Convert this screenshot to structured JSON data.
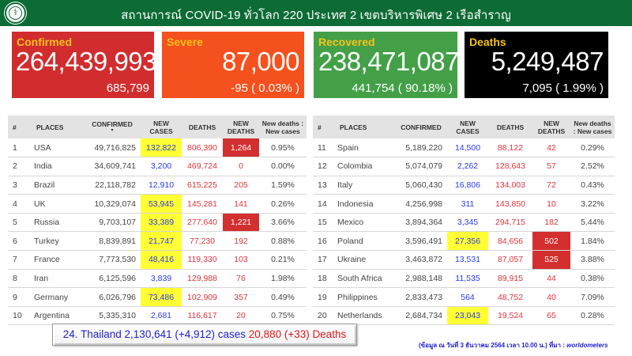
{
  "header": {
    "title": "สถานการณ์ COVID-19 ทั่วโลก 220 ประเทศ 2 เขตบริหารพิเศษ 2 เรือสำราญ",
    "logo_icon": "ministry-of-public-health-seal"
  },
  "cards": {
    "confirmed": {
      "label": "Confirmed",
      "value": "264,439,993",
      "sub": "685,799",
      "color": "#d12d2e"
    },
    "severe": {
      "label": "Severe",
      "value": "87,000",
      "sub": "-95 ( 0.03% )",
      "color": "#f4511e"
    },
    "recovered": {
      "label": "Recovered",
      "value": "238,471,087",
      "sub": "441,754 ( 90.18% )",
      "color": "#43a047"
    },
    "deaths": {
      "label": "Deaths",
      "value": "5,249,487",
      "sub": "7,095 ( 1.99% )",
      "color": "#000000"
    }
  },
  "table_headers": {
    "rank": "#",
    "places": "PLACES",
    "confirmed": "CONFIRMED",
    "sort_indicator": "▾",
    "new_cases_1": "NEW",
    "new_cases_2": "CASES",
    "deaths": "DEATHS",
    "new_deaths_1": "NEW",
    "new_deaths_2": "DEATHS",
    "ratio_left_1": "New deaths :",
    "ratio_left_2": "New cases",
    "ratio_right_1": "New deaths",
    "ratio_right_2": ": New cases"
  },
  "left_rows": [
    {
      "rank": "1",
      "place": "USA",
      "confirmed": "49,716,825",
      "new_cases": "132,822",
      "new_cases_hl": true,
      "deaths": "806,390",
      "new_deaths": "1,264",
      "new_deaths_hl": true,
      "ratio": "0.95%"
    },
    {
      "rank": "2",
      "place": "India",
      "confirmed": "34,609,741",
      "new_cases": "3,200",
      "new_cases_hl": false,
      "deaths": "469,724",
      "new_deaths": "0",
      "new_deaths_hl": false,
      "ratio": "0.00%"
    },
    {
      "rank": "3",
      "place": "Brazil",
      "confirmed": "22,118,782",
      "new_cases": "12,910",
      "new_cases_hl": false,
      "deaths": "615,225",
      "new_deaths": "205",
      "new_deaths_hl": false,
      "ratio": "1.59%"
    },
    {
      "rank": "4",
      "place": "UK",
      "confirmed": "10,329,074",
      "new_cases": "53,945",
      "new_cases_hl": true,
      "deaths": "145,281",
      "new_deaths": "141",
      "new_deaths_hl": false,
      "ratio": "0.26%"
    },
    {
      "rank": "5",
      "place": "Russia",
      "confirmed": "9,703,107",
      "new_cases": "33,389",
      "new_cases_hl": true,
      "deaths": "277,640",
      "new_deaths": "1,221",
      "new_deaths_hl": true,
      "ratio": "3.66%"
    },
    {
      "rank": "6",
      "place": "Turkey",
      "confirmed": "8,839,891",
      "new_cases": "21,747",
      "new_cases_hl": true,
      "deaths": "77,230",
      "new_deaths": "192",
      "new_deaths_hl": false,
      "ratio": "0.88%"
    },
    {
      "rank": "7",
      "place": "France",
      "confirmed": "7,773,530",
      "new_cases": "48,416",
      "new_cases_hl": true,
      "deaths": "119,330",
      "new_deaths": "103",
      "new_deaths_hl": false,
      "ratio": "0.21%"
    },
    {
      "rank": "8",
      "place": "Iran",
      "confirmed": "6,125,596",
      "new_cases": "3,839",
      "new_cases_hl": false,
      "deaths": "129,988",
      "new_deaths": "76",
      "new_deaths_hl": false,
      "ratio": "1.98%"
    },
    {
      "rank": "9",
      "place": "Germany",
      "confirmed": "6,026,796",
      "new_cases": "73,486",
      "new_cases_hl": true,
      "deaths": "102,909",
      "new_deaths": "357",
      "new_deaths_hl": false,
      "ratio": "0.49%"
    },
    {
      "rank": "10",
      "place": "Argentina",
      "confirmed": "5,335,310",
      "new_cases": "2,681",
      "new_cases_hl": false,
      "deaths": "116,617",
      "new_deaths": "20",
      "new_deaths_hl": false,
      "ratio": "0.75%"
    }
  ],
  "right_rows": [
    {
      "rank": "11",
      "place": "Spain",
      "confirmed": "5,189,220",
      "new_cases": "14,500",
      "new_cases_hl": false,
      "deaths": "88,122",
      "new_deaths": "42",
      "new_deaths_hl": false,
      "ratio": "0.29%"
    },
    {
      "rank": "12",
      "place": "Colombia",
      "confirmed": "5,074,079",
      "new_cases": "2,262",
      "new_cases_hl": false,
      "deaths": "128,643",
      "new_deaths": "57",
      "new_deaths_hl": false,
      "ratio": "2.52%"
    },
    {
      "rank": "13",
      "place": "Italy",
      "confirmed": "5,060,430",
      "new_cases": "16,806",
      "new_cases_hl": false,
      "deaths": "134,003",
      "new_deaths": "72",
      "new_deaths_hl": false,
      "ratio": "0.43%"
    },
    {
      "rank": "14",
      "place": "Indonesia",
      "confirmed": "4,256,998",
      "new_cases": "311",
      "new_cases_hl": false,
      "deaths": "143,850",
      "new_deaths": "10",
      "new_deaths_hl": false,
      "ratio": "3.22%"
    },
    {
      "rank": "15",
      "place": "Mexico",
      "confirmed": "3,894,364",
      "new_cases": "3,345",
      "new_cases_hl": false,
      "deaths": "294,715",
      "new_deaths": "182",
      "new_deaths_hl": false,
      "ratio": "5.44%"
    },
    {
      "rank": "16",
      "place": "Poland",
      "confirmed": "3,596,491",
      "new_cases": "27,356",
      "new_cases_hl": true,
      "deaths": "84,656",
      "new_deaths": "502",
      "new_deaths_hl": true,
      "ratio": "1.84%"
    },
    {
      "rank": "17",
      "place": "Ukraine",
      "confirmed": "3,463,872",
      "new_cases": "13,531",
      "new_cases_hl": false,
      "deaths": "87,057",
      "new_deaths": "525",
      "new_deaths_hl": true,
      "ratio": "3.88%"
    },
    {
      "rank": "18",
      "place": "South Africa",
      "confirmed": "2,988,148",
      "new_cases": "11,535",
      "new_cases_hl": false,
      "deaths": "89,915",
      "new_deaths": "44",
      "new_deaths_hl": false,
      "ratio": "0.38%"
    },
    {
      "rank": "19",
      "place": "Philippines",
      "confirmed": "2,833,473",
      "new_cases": "564",
      "new_cases_hl": false,
      "deaths": "48,752",
      "new_deaths": "40",
      "new_deaths_hl": false,
      "ratio": "7.09%"
    },
    {
      "rank": "20",
      "place": "Netherlands",
      "confirmed": "2,684,734",
      "new_cases": "23,043",
      "new_cases_hl": true,
      "deaths": "19,524",
      "new_deaths": "65",
      "new_deaths_hl": false,
      "ratio": "0.28%"
    }
  ],
  "thailand": {
    "cases_text": "24. Thailand 2,130,641 (+4,912) cases",
    "deaths_text": "20,880 (+33) Deaths"
  },
  "source": {
    "prefix": "(ข้อมูล ณ วันที่ 3 ธันวาคม 2564 เวลา 10.00 น.) ที่มา : ",
    "name": "worldometers"
  },
  "colors": {
    "header_bg": "#0d6b35",
    "highlight_yellow": "#ffff33",
    "highlight_red": "#d32f2f",
    "new_cases_text": "#2b38e8",
    "deaths_text": "#e0343a"
  }
}
